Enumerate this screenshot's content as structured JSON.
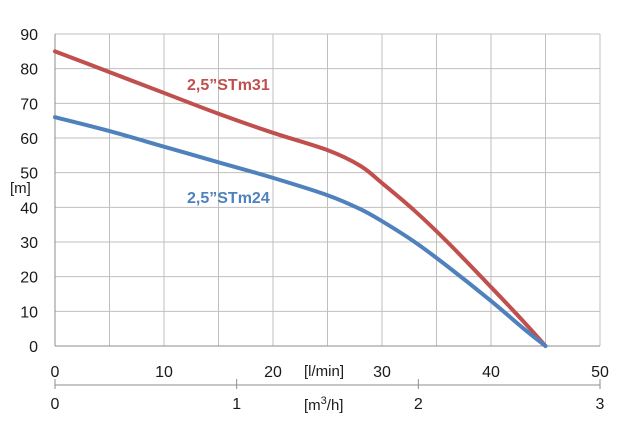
{
  "chart_data": {
    "type": "line",
    "title": "",
    "ylabel": "[m]",
    "xlabel": "[l/min]",
    "xlabel_secondary": "[m³/h]",
    "xlim": [
      0,
      50
    ],
    "ylim": [
      0,
      90
    ],
    "secondary_xlim": [
      0,
      3
    ],
    "x_ticks": [
      0,
      10,
      20,
      30,
      40,
      50
    ],
    "y_ticks": [
      0,
      10,
      20,
      30,
      40,
      50,
      60,
      70,
      80,
      90
    ],
    "secondary_x_ticks": [
      0,
      1,
      2,
      3
    ],
    "x_tick_labels": [
      "0",
      "10",
      "20",
      "30",
      "40",
      "50"
    ],
    "y_tick_labels": [
      "0",
      "10",
      "20",
      "30",
      "40",
      "50",
      "60",
      "70",
      "80",
      "90"
    ],
    "secondary_x_tick_labels": [
      "0",
      "1",
      "2",
      "3"
    ],
    "grid": true,
    "series": [
      {
        "name": "2,5\"STm31",
        "color": "#c0504d",
        "label_text": "2,5”STm31",
        "points": [
          [
            0,
            85
          ],
          [
            5,
            79
          ],
          [
            10,
            73
          ],
          [
            15,
            67
          ],
          [
            20,
            61.5
          ],
          [
            25,
            56.5
          ],
          [
            28,
            52
          ],
          [
            30,
            47
          ],
          [
            33,
            39
          ],
          [
            36,
            30
          ],
          [
            40,
            17
          ],
          [
            43,
            7
          ],
          [
            45,
            0
          ]
        ]
      },
      {
        "name": "2,5\"STm24",
        "color": "#4f81bd",
        "label_text": "2,5”STm24",
        "points": [
          [
            0,
            66
          ],
          [
            5,
            62
          ],
          [
            10,
            57.5
          ],
          [
            15,
            53
          ],
          [
            20,
            48.5
          ],
          [
            25,
            43.5
          ],
          [
            28,
            39.5
          ],
          [
            30,
            36
          ],
          [
            33,
            30
          ],
          [
            36,
            23
          ],
          [
            40,
            13
          ],
          [
            43,
            5
          ],
          [
            45,
            0
          ]
        ]
      }
    ]
  }
}
